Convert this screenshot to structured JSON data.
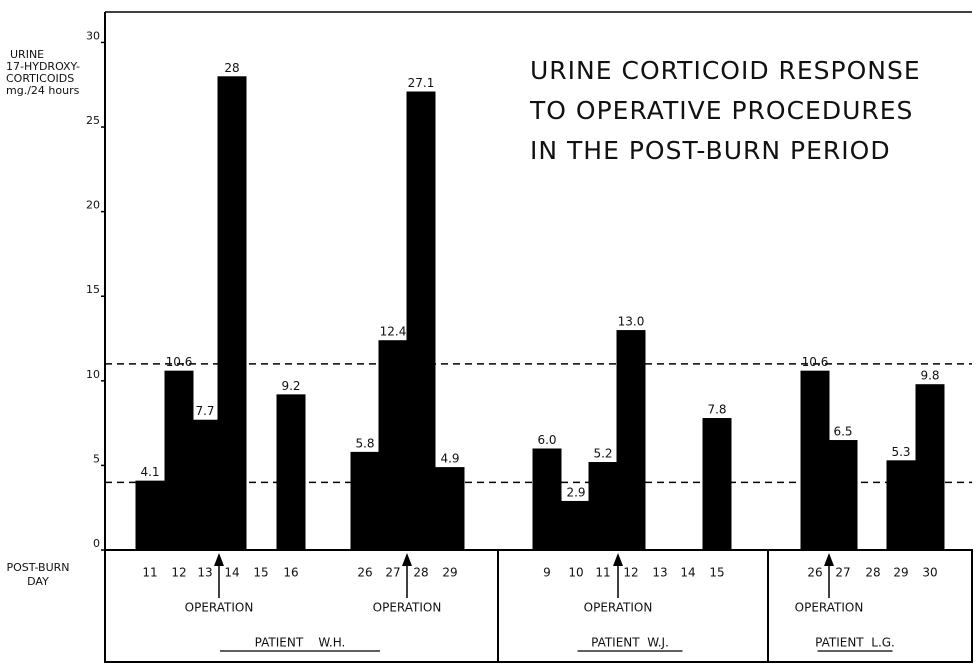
{
  "chart_data": {
    "type": "bar",
    "title": [
      "URINE CORTICOID RESPONSE",
      "TO OPERATIVE PROCEDURES",
      "IN THE POST-BURN PERIOD"
    ],
    "y_label": [
      "URINE",
      "17-HYDROXY-",
      "CORTICOIDS",
      "mg./24 hours"
    ],
    "x_label": [
      "POST-BURN",
      "DAY"
    ],
    "categories": [
      "11",
      "12",
      "13",
      "14",
      "15",
      "16",
      "26",
      "27",
      "28",
      "29",
      "9",
      "10",
      "11",
      "12",
      "13",
      "14",
      "15",
      "26",
      "27",
      "28",
      "29",
      "30"
    ],
    "values": [
      4.1,
      10.6,
      7.7,
      28,
      null,
      9.2,
      5.8,
      12.4,
      27.1,
      4.9,
      6.0,
      2.9,
      5.2,
      13.0,
      null,
      null,
      7.8,
      10.6,
      6.5,
      null,
      5.3,
      9.8
    ],
    "value_labels": [
      "4.1",
      "10.6",
      "7.7",
      "28",
      null,
      "9.2",
      "5.8",
      "12.4",
      "27.1",
      "4.9",
      "6.0",
      "2.9",
      "5.2",
      "13.0",
      null,
      null,
      "7.8",
      "10.6",
      "6.5",
      null,
      "5.3",
      "9.8"
    ],
    "color": "#000000",
    "ylim": [
      0,
      31.8
    ],
    "yticks": [
      0,
      5,
      10,
      15,
      20,
      25,
      30
    ],
    "reference_lines": [
      11,
      4
    ],
    "operations": [
      "OPERATION",
      "OPERATION",
      "OPERATION",
      "OPERATION"
    ],
    "patients": [
      "PATIENT    W.H.",
      "PATIENT  W.J.",
      "PATIENT  L.G."
    ]
  }
}
